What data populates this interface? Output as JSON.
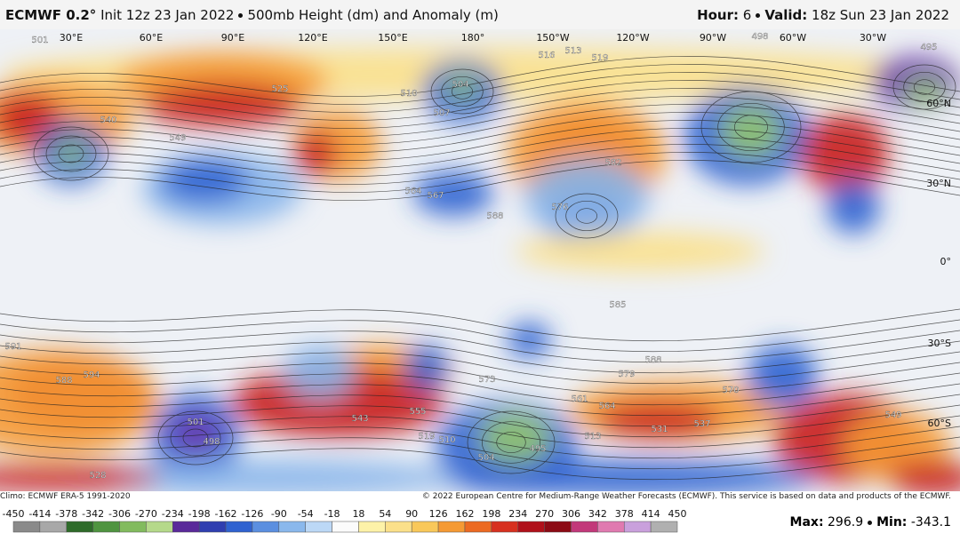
{
  "header": {
    "model": "ECMWF 0.2°",
    "init": "Init 12z 23 Jan 2022",
    "product": "500mb Height (dm) and Anomaly (m)",
    "hour_label": "Hour:",
    "hour": 6,
    "valid_label": "Valid:",
    "valid": "18z Sun 23 Jan 2022"
  },
  "map": {
    "longitudes": [
      "30°E",
      "60°E",
      "90°E",
      "120°E",
      "150°E",
      "180°",
      "150°W",
      "120°W",
      "90°W",
      "60°W",
      "30°W"
    ],
    "latitudes": [
      "60°N",
      "30°N",
      "0°",
      "30°S",
      "60°S"
    ],
    "contour_labels": [
      501,
      540,
      549,
      525,
      504,
      507,
      510,
      567,
      564,
      588,
      576,
      582,
      585,
      573,
      579,
      588,
      594,
      588,
      591,
      501,
      498,
      543,
      555,
      504,
      495,
      513,
      570,
      549,
      528,
      510,
      519,
      531,
      537,
      561,
      564,
      519,
      516,
      513,
      498,
      495
    ]
  },
  "footer": {
    "climo": "Climo: ECMWF ERA-5 1991-2020",
    "copyright": "© 2022 European Centre for Medium-Range Weather Forecasts (ECMWF). This service is based on data and products of the ECMWF.",
    "colorbar_ticks": [
      -450,
      -414,
      -378,
      -342,
      -306,
      -270,
      -234,
      -198,
      -162,
      -126,
      -90,
      -54,
      -18,
      18,
      54,
      90,
      126,
      162,
      198,
      234,
      270,
      306,
      342,
      378,
      414,
      450
    ],
    "max_label": "Max:",
    "max": 296.9,
    "min_label": "Min:",
    "min": -343.1
  }
}
